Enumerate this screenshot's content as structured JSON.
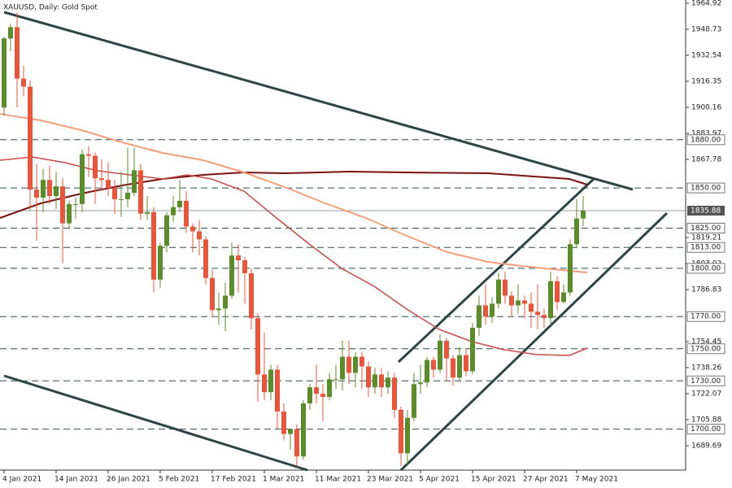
{
  "chart_data": {
    "type": "candlestick",
    "title": "XAUUSD, Daily:  Gold Spot",
    "up_color": "#5b8c2a",
    "down_color": "#e8553a",
    "ylim": [
      1674.5,
      1966.9
    ],
    "yticks": [
      1964.92,
      1948.73,
      1932.54,
      1916.35,
      1900.16,
      1883.97,
      1867.78,
      1819.21,
      1803.02,
      1786.83,
      1754.45,
      1738.26,
      1722.07,
      1705.88,
      1689.69
    ],
    "levels": [
      {
        "value": 1880,
        "label": "1880.00"
      },
      {
        "value": 1850,
        "label": "1850.00"
      },
      {
        "value": 1825,
        "label": "1825.00"
      },
      {
        "value": 1813,
        "label": "1813.00"
      },
      {
        "value": 1800,
        "label": "1800.00"
      },
      {
        "value": 1770,
        "label": "1770.00"
      },
      {
        "value": 1750,
        "label": "1750.00"
      },
      {
        "value": 1730,
        "label": "1730.00"
      },
      {
        "value": 1700,
        "label": "1700.00"
      }
    ],
    "last_price": 1835.88,
    "categories": [
      "4 Jan 2021",
      null,
      null,
      null,
      null,
      null,
      null,
      null,
      "14 Jan 2021",
      null,
      null,
      null,
      null,
      null,
      null,
      null,
      "26 Jan 2021",
      null,
      null,
      null,
      null,
      null,
      null,
      null,
      "5 Feb 2021",
      null,
      null,
      null,
      null,
      null,
      null,
      null,
      "17 Feb 2021",
      null,
      null,
      null,
      null,
      null,
      null,
      null,
      "1 Mar 2021",
      null,
      null,
      null,
      null,
      null,
      null,
      null,
      "11 Mar 2021",
      null,
      null,
      null,
      null,
      null,
      null,
      null,
      "23 Mar 2021",
      null,
      null,
      null,
      null,
      null,
      null,
      null,
      "5 Apr 2021",
      null,
      null,
      null,
      null,
      null,
      null,
      null,
      "15 Apr 2021",
      null,
      null,
      null,
      null,
      null,
      null,
      null,
      "27 Apr 2021",
      null,
      null,
      null,
      null,
      null,
      null,
      null,
      "7 May 2021",
      null
    ],
    "ohlc": [
      [
        1900,
        1944,
        1895,
        1943
      ],
      [
        1943,
        1952,
        1935,
        1950
      ],
      [
        1950,
        1959,
        1900,
        1918
      ],
      [
        1918,
        1926,
        1907,
        1913
      ],
      [
        1913,
        1917,
        1836,
        1849
      ],
      [
        1849,
        1865,
        1817,
        1844
      ],
      [
        1844,
        1862,
        1835,
        1855
      ],
      [
        1855,
        1864,
        1840,
        1845
      ],
      [
        1845,
        1860,
        1837,
        1851
      ],
      [
        1851,
        1856,
        1803,
        1828
      ],
      [
        1828,
        1842,
        1825,
        1840
      ],
      [
        1840,
        1844,
        1831,
        1840
      ],
      [
        1840,
        1874,
        1835,
        1871
      ],
      [
        1871,
        1876,
        1857,
        1870
      ],
      [
        1870,
        1872,
        1840,
        1856
      ],
      [
        1856,
        1868,
        1848,
        1855
      ],
      [
        1855,
        1866,
        1845,
        1850
      ],
      [
        1850,
        1855,
        1834,
        1843
      ],
      [
        1843,
        1860,
        1832,
        1843
      ],
      [
        1843,
        1875,
        1838,
        1847
      ],
      [
        1847,
        1875,
        1845,
        1861
      ],
      [
        1861,
        1865,
        1830,
        1834
      ],
      [
        1834,
        1845,
        1830,
        1835
      ],
      [
        1835,
        1838,
        1785,
        1793
      ],
      [
        1793,
        1816,
        1788,
        1814
      ],
      [
        1814,
        1835,
        1810,
        1833
      ],
      [
        1833,
        1845,
        1829,
        1838
      ],
      [
        1838,
        1855,
        1835,
        1842
      ],
      [
        1842,
        1848,
        1822,
        1826
      ],
      [
        1826,
        1828,
        1810,
        1823
      ],
      [
        1823,
        1830,
        1808,
        1818
      ],
      [
        1818,
        1820,
        1790,
        1794
      ],
      [
        1794,
        1799,
        1770,
        1774
      ],
      [
        1774,
        1785,
        1765,
        1775
      ],
      [
        1775,
        1791,
        1761,
        1783
      ],
      [
        1783,
        1816,
        1781,
        1808
      ],
      [
        1808,
        1815,
        1785,
        1805
      ],
      [
        1805,
        1807,
        1778,
        1797
      ],
      [
        1797,
        1800,
        1762,
        1769
      ],
      [
        1769,
        1772,
        1717,
        1734
      ],
      [
        1734,
        1760,
        1718,
        1723
      ],
      [
        1723,
        1740,
        1718,
        1737
      ],
      [
        1737,
        1740,
        1700,
        1711
      ],
      [
        1711,
        1716,
        1693,
        1697
      ],
      [
        1697,
        1700,
        1687,
        1700
      ],
      [
        1700,
        1703,
        1677,
        1683
      ],
      [
        1683,
        1718,
        1681,
        1716
      ],
      [
        1716,
        1728,
        1712,
        1726
      ],
      [
        1726,
        1740,
        1716,
        1722
      ],
      [
        1722,
        1728,
        1705,
        1720
      ],
      [
        1720,
        1735,
        1718,
        1731
      ],
      [
        1731,
        1740,
        1725,
        1731
      ],
      [
        1731,
        1755,
        1724,
        1745
      ],
      [
        1745,
        1755,
        1728,
        1735
      ],
      [
        1735,
        1748,
        1726,
        1745
      ],
      [
        1745,
        1748,
        1725,
        1739
      ],
      [
        1739,
        1742,
        1720,
        1726
      ],
      [
        1726,
        1738,
        1722,
        1734
      ],
      [
        1734,
        1738,
        1720,
        1726
      ],
      [
        1726,
        1736,
        1722,
        1732
      ],
      [
        1732,
        1735,
        1707,
        1712
      ],
      [
        1712,
        1714,
        1677,
        1685
      ],
      [
        1685,
        1712,
        1677,
        1707
      ],
      [
        1707,
        1735,
        1705,
        1728
      ],
      [
        1728,
        1740,
        1722,
        1729
      ],
      [
        1729,
        1745,
        1726,
        1743
      ],
      [
        1743,
        1745,
        1732,
        1737
      ],
      [
        1737,
        1759,
        1735,
        1755
      ],
      [
        1755,
        1757,
        1730,
        1744
      ],
      [
        1744,
        1746,
        1727,
        1732
      ],
      [
        1732,
        1751,
        1730,
        1746
      ],
      [
        1746,
        1750,
        1733,
        1736
      ],
      [
        1736,
        1766,
        1734,
        1763
      ],
      [
        1763,
        1783,
        1758,
        1777
      ],
      [
        1777,
        1790,
        1765,
        1770
      ],
      [
        1770,
        1782,
        1766,
        1778
      ],
      [
        1778,
        1797,
        1775,
        1793
      ],
      [
        1793,
        1798,
        1778,
        1783
      ],
      [
        1783,
        1786,
        1770,
        1777
      ],
      [
        1777,
        1790,
        1772,
        1780
      ],
      [
        1780,
        1783,
        1769,
        1778
      ],
      [
        1778,
        1785,
        1763,
        1773
      ],
      [
        1773,
        1790,
        1762,
        1771
      ],
      [
        1771,
        1775,
        1763,
        1769
      ],
      [
        1769,
        1798,
        1765,
        1792
      ],
      [
        1792,
        1795,
        1774,
        1779
      ],
      [
        1779,
        1790,
        1778,
        1785
      ],
      [
        1785,
        1818,
        1783,
        1815
      ],
      [
        1815,
        1843,
        1813,
        1831
      ],
      [
        1831,
        1845,
        1826,
        1836
      ]
    ]
  }
}
